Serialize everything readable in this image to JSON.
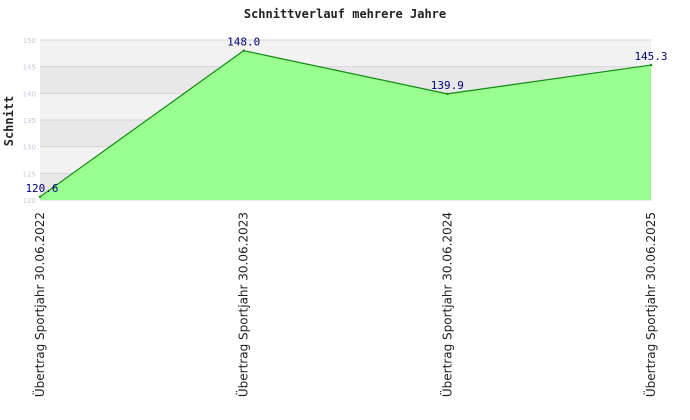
{
  "chart_data": {
    "type": "area",
    "title": "Schnittverlauf mehrere Jahre",
    "ylabel": "Schnitt",
    "xlabel": "",
    "categories": [
      "Übertrag Sportjahr 30.06.2022",
      "Übertrag Sportjahr 30.06.2023",
      "Übertrag Sportjahr 30.06.2024",
      "Übertrag Sportjahr 30.06.2025"
    ],
    "values": [
      120.6,
      148.0,
      139.9,
      145.3
    ],
    "data_labels": [
      "120.6",
      "148.0",
      "139.9",
      "145.3"
    ],
    "ylim": [
      120,
      150
    ],
    "yticks": [
      120,
      125,
      130,
      135,
      140,
      145,
      150
    ],
    "grid": true,
    "legend": "none",
    "colors": {
      "fill": "#99ff8f",
      "line": "#138a13",
      "band_light": "#f2f2f2",
      "band_dark": "#e8e8e8",
      "data_label": "#00007a"
    }
  }
}
